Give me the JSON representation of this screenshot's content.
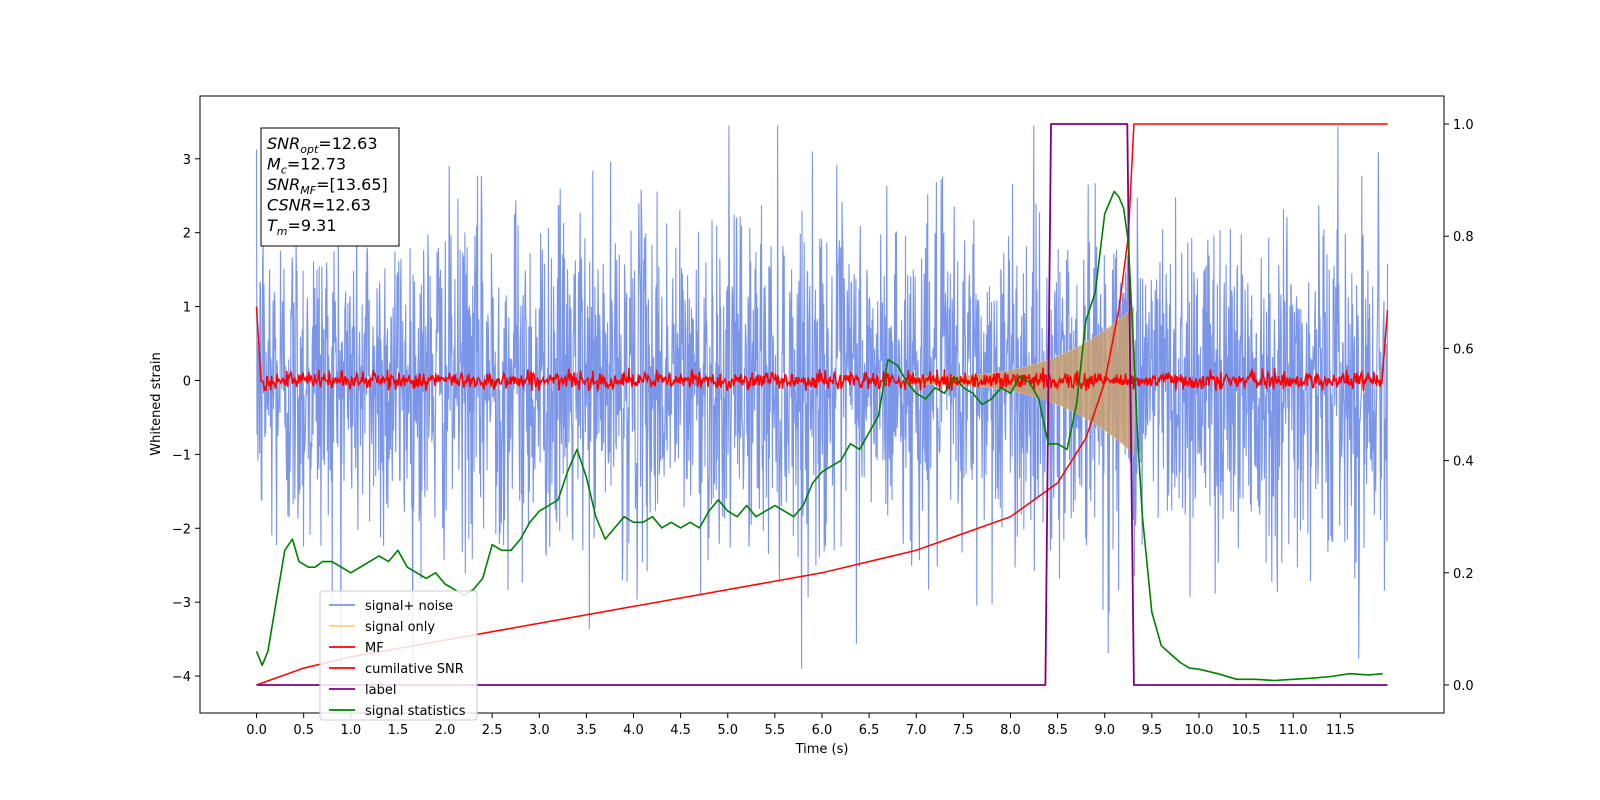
{
  "chart_data": {
    "type": "line",
    "xlabel": "Time (s)",
    "ylabel": "Whitened strain",
    "xlim": [
      -0.6,
      12.6
    ],
    "ylim": [
      -4.5,
      3.85
    ],
    "y2lim": [
      -0.05,
      1.05
    ],
    "x_ticks": [
      "0.0",
      "0.5",
      "1.0",
      "1.5",
      "2.0",
      "2.5",
      "3.0",
      "3.5",
      "4.0",
      "4.5",
      "5.0",
      "5.5",
      "6.0",
      "6.5",
      "7.0",
      "7.5",
      "8.0",
      "8.5",
      "9.0",
      "9.5",
      "10.0",
      "10.5",
      "11.0",
      "11.5"
    ],
    "y_ticks": [
      "3",
      "2",
      "1",
      "0",
      "−1",
      "−2",
      "−3",
      "−4"
    ],
    "y2_ticks": [
      "1.0",
      "0.8",
      "0.6",
      "0.4",
      "0.2",
      "0.0"
    ],
    "info_box": [
      {
        "sym": "SNR",
        "sub": "opt",
        "value": "=12.63"
      },
      {
        "sym": "M",
        "sub": "c",
        "value": "=12.73"
      },
      {
        "sym": "SNR",
        "sub": "MF",
        "value": "=[13.65]"
      },
      {
        "sym": "CSNR",
        "sub": "",
        "value": "=12.63"
      },
      {
        "sym": "T",
        "sub": "m",
        "value": "=9.31"
      }
    ],
    "legend_position": "lower-left",
    "series": [
      {
        "name": "signal+ noise",
        "color": "#7b96e8",
        "axis": "left",
        "description": "noisy whitened strain, amplitude roughly ±2 to ±3.5 over 0–12 s"
      },
      {
        "name": "signal only",
        "color": "#f5d27a",
        "axis": "left",
        "description": "chirp envelope growing from ~±0.05 at 6.9 s to ~±1.0 at 9.3 s, zero after"
      },
      {
        "name": "MF",
        "color": "#ff0000",
        "axis": "left",
        "description": "matched filter output, ~0 with noise ±0.15, 1.0 at 0 s and 0.95 at 12 s"
      },
      {
        "name": "cumilative SNR",
        "color": "#ff0000",
        "axis": "right",
        "x": [
          0.0,
          0.5,
          1.0,
          2.0,
          3.0,
          4.0,
          5.0,
          6.0,
          7.0,
          7.5,
          8.0,
          8.5,
          8.8,
          9.0,
          9.15,
          9.25,
          9.31,
          12.0
        ],
        "y": [
          0.0,
          0.03,
          0.05,
          0.08,
          0.11,
          0.14,
          0.17,
          0.2,
          0.24,
          0.27,
          0.3,
          0.36,
          0.44,
          0.54,
          0.67,
          0.8,
          1.0,
          1.0
        ]
      },
      {
        "name": "label",
        "color": "#800080",
        "axis": "right",
        "x": [
          0.0,
          8.37,
          8.43,
          9.24,
          9.31,
          12.0
        ],
        "y": [
          0.0,
          0.0,
          1.0,
          1.0,
          0.0,
          0.0
        ]
      },
      {
        "name": "signal statistics",
        "color": "#008000",
        "axis": "right",
        "x": [
          0.0,
          0.06,
          0.12,
          0.2,
          0.3,
          0.38,
          0.45,
          0.55,
          0.62,
          0.7,
          0.8,
          0.9,
          1.0,
          1.1,
          1.2,
          1.3,
          1.4,
          1.5,
          1.6,
          1.7,
          1.8,
          1.9,
          2.0,
          2.1,
          2.2,
          2.3,
          2.4,
          2.5,
          2.6,
          2.7,
          2.8,
          2.9,
          3.0,
          3.1,
          3.2,
          3.3,
          3.4,
          3.5,
          3.6,
          3.7,
          3.8,
          3.9,
          4.0,
          4.1,
          4.2,
          4.3,
          4.4,
          4.5,
          4.6,
          4.7,
          4.8,
          4.9,
          5.0,
          5.1,
          5.2,
          5.3,
          5.4,
          5.5,
          5.6,
          5.7,
          5.8,
          5.9,
          6.0,
          6.1,
          6.2,
          6.3,
          6.4,
          6.5,
          6.6,
          6.7,
          6.8,
          6.9,
          7.0,
          7.1,
          7.2,
          7.3,
          7.4,
          7.5,
          7.6,
          7.7,
          7.8,
          7.9,
          8.0,
          8.1,
          8.2,
          8.3,
          8.4,
          8.5,
          8.6,
          8.7,
          8.8,
          8.9,
          9.0,
          9.1,
          9.15,
          9.2,
          9.25,
          9.3,
          9.35,
          9.4,
          9.5,
          9.6,
          9.7,
          9.8,
          9.9,
          10.0,
          10.2,
          10.4,
          10.6,
          10.8,
          11.0,
          11.2,
          11.4,
          11.6,
          11.8,
          11.95
        ],
        "y": [
          0.06,
          0.035,
          0.06,
          0.14,
          0.24,
          0.26,
          0.22,
          0.21,
          0.21,
          0.22,
          0.22,
          0.21,
          0.2,
          0.21,
          0.22,
          0.23,
          0.22,
          0.24,
          0.21,
          0.2,
          0.19,
          0.2,
          0.18,
          0.17,
          0.16,
          0.17,
          0.19,
          0.25,
          0.24,
          0.24,
          0.26,
          0.29,
          0.31,
          0.32,
          0.33,
          0.38,
          0.42,
          0.37,
          0.3,
          0.26,
          0.28,
          0.3,
          0.29,
          0.29,
          0.3,
          0.28,
          0.29,
          0.28,
          0.29,
          0.28,
          0.31,
          0.33,
          0.31,
          0.3,
          0.32,
          0.3,
          0.31,
          0.32,
          0.31,
          0.3,
          0.32,
          0.36,
          0.38,
          0.39,
          0.4,
          0.43,
          0.42,
          0.45,
          0.48,
          0.58,
          0.57,
          0.54,
          0.52,
          0.51,
          0.53,
          0.52,
          0.55,
          0.53,
          0.52,
          0.5,
          0.51,
          0.53,
          0.52,
          0.55,
          0.54,
          0.51,
          0.43,
          0.43,
          0.42,
          0.5,
          0.65,
          0.7,
          0.84,
          0.88,
          0.87,
          0.85,
          0.79,
          0.62,
          0.44,
          0.3,
          0.13,
          0.07,
          0.055,
          0.04,
          0.03,
          0.028,
          0.02,
          0.01,
          0.01,
          0.008,
          0.01,
          0.012,
          0.015,
          0.02,
          0.018,
          0.02
        ]
      }
    ]
  }
}
